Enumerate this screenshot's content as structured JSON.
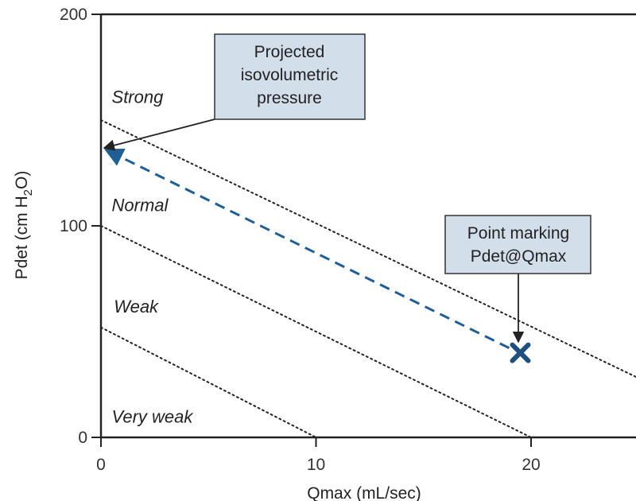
{
  "chart_data": {
    "type": "line",
    "xlabel": "Qmax (mL/sec)",
    "ylabel": "Pdet (cm H",
    "ylabel_sub": "2",
    "ylabel_end": "O)",
    "xlim": [
      0,
      25
    ],
    "ylim": [
      0,
      200
    ],
    "x_ticks": [
      0,
      10,
      20
    ],
    "y_ticks": [
      0,
      100,
      200
    ],
    "x_tick_labels": [
      "0",
      "10",
      "20"
    ],
    "y_tick_labels": [
      "0",
      "100",
      "200"
    ],
    "grid": false,
    "zones": [
      {
        "label": "Strong",
        "x": [
          0,
          25
        ],
        "y": [
          150,
          28
        ],
        "label_at": [
          0.5,
          158
        ]
      },
      {
        "label": "Normal",
        "x": [
          0,
          20
        ],
        "y": [
          100,
          0
        ],
        "label_at": [
          0.5,
          107
        ]
      },
      {
        "label": "Weak",
        "x": [
          0,
          10
        ],
        "y": [
          52,
          0
        ],
        "label_at": [
          0.6,
          59
        ]
      },
      {
        "label": "Very weak",
        "label_at": [
          0.5,
          7
        ]
      }
    ],
    "projection": {
      "x": [
        19.5,
        0
      ],
      "y": [
        40,
        136
      ]
    },
    "point": {
      "x": 19.5,
      "y": 40,
      "marker": "x"
    },
    "colors": {
      "projection": "#1f5f95",
      "point": "#1f4f7f",
      "zone_lines": "#222222",
      "callout_fill": "#d3deeb",
      "axes": "#222222"
    },
    "callouts": [
      {
        "lines": [
          "Projected",
          "isovolumetric",
          "pressure"
        ],
        "arrow_to": [
          0,
          136
        ]
      },
      {
        "lines": [
          "Point marking",
          "Pdet@Qmax"
        ],
        "arrow_to": [
          19.5,
          40
        ]
      }
    ]
  }
}
